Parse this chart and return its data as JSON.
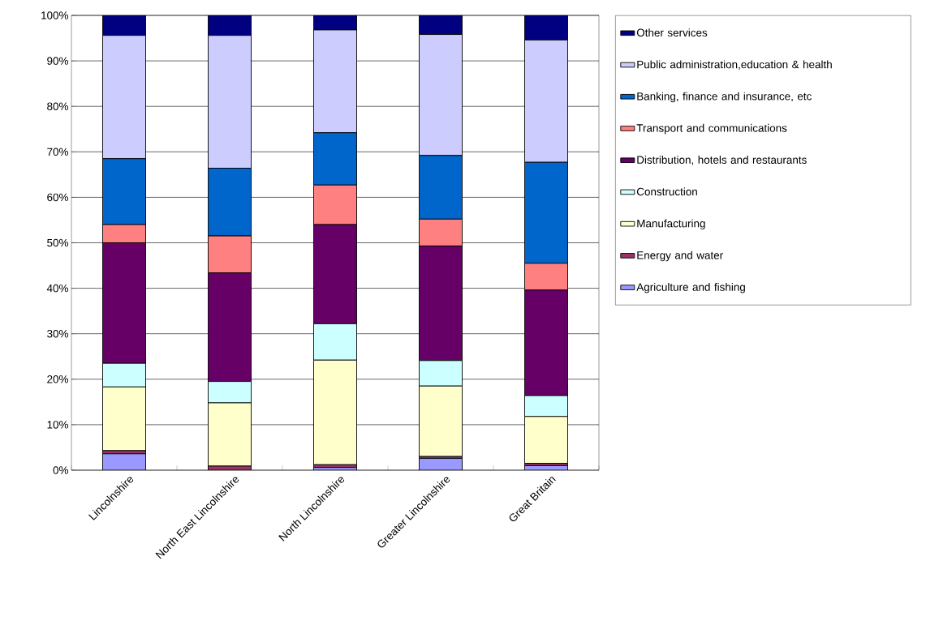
{
  "chart_data": {
    "type": "bar",
    "stacked": true,
    "categories": [
      "Lincolnshire",
      "North East Lincolnshire",
      "North Lincolnshire",
      "Greater Lincolnshire",
      "Great Britain"
    ],
    "series": [
      {
        "name": "Agriculture and fishing",
        "color": "#9999ff",
        "values": [
          3.6,
          0,
          0.6,
          2.6,
          1.0
        ]
      },
      {
        "name": "Energy and water",
        "color": "#993366",
        "values": [
          0.7,
          0.9,
          0.6,
          0.4,
          0.5
        ]
      },
      {
        "name": "Manufacturing",
        "color": "#ffffcc",
        "values": [
          14.0,
          13.9,
          23.0,
          15.5,
          10.3
        ]
      },
      {
        "name": "Construction",
        "color": "#ccffff",
        "values": [
          5.2,
          4.7,
          8.0,
          5.6,
          4.6
        ]
      },
      {
        "name": "Distribution, hotels and restaurants",
        "color": "#660066",
        "values": [
          26.5,
          23.9,
          21.8,
          25.2,
          23.2
        ]
      },
      {
        "name": "Transport and communications",
        "color": "#ff8080",
        "values": [
          4.0,
          8.1,
          8.7,
          5.9,
          5.9
        ]
      },
      {
        "name": "Banking, finance and insurance, etc",
        "color": "#0066cc",
        "values": [
          14.5,
          14.9,
          11.5,
          14.0,
          22.2
        ]
      },
      {
        "name": "Public administration,education & health",
        "color": "#ccccff",
        "values": [
          27.1,
          29.2,
          22.6,
          26.6,
          26.9
        ]
      },
      {
        "name": "Other services",
        "color": "#000080",
        "values": [
          4.4,
          4.4,
          3.2,
          4.2,
          5.4
        ]
      }
    ],
    "ylim": [
      0,
      100
    ],
    "yticks": [
      {
        "value": 0,
        "label": "0%"
      },
      {
        "value": 10,
        "label": "10%"
      },
      {
        "value": 20,
        "label": "20%"
      },
      {
        "value": 30,
        "label": "30%"
      },
      {
        "value": 40,
        "label": "40%"
      },
      {
        "value": 50,
        "label": "50%"
      },
      {
        "value": 60,
        "label": "60%"
      },
      {
        "value": 70,
        "label": "70%"
      },
      {
        "value": 80,
        "label": "80%"
      },
      {
        "value": 90,
        "label": "90%"
      },
      {
        "value": 100,
        "label": "100%"
      }
    ],
    "grid": "y",
    "legend": "right"
  }
}
